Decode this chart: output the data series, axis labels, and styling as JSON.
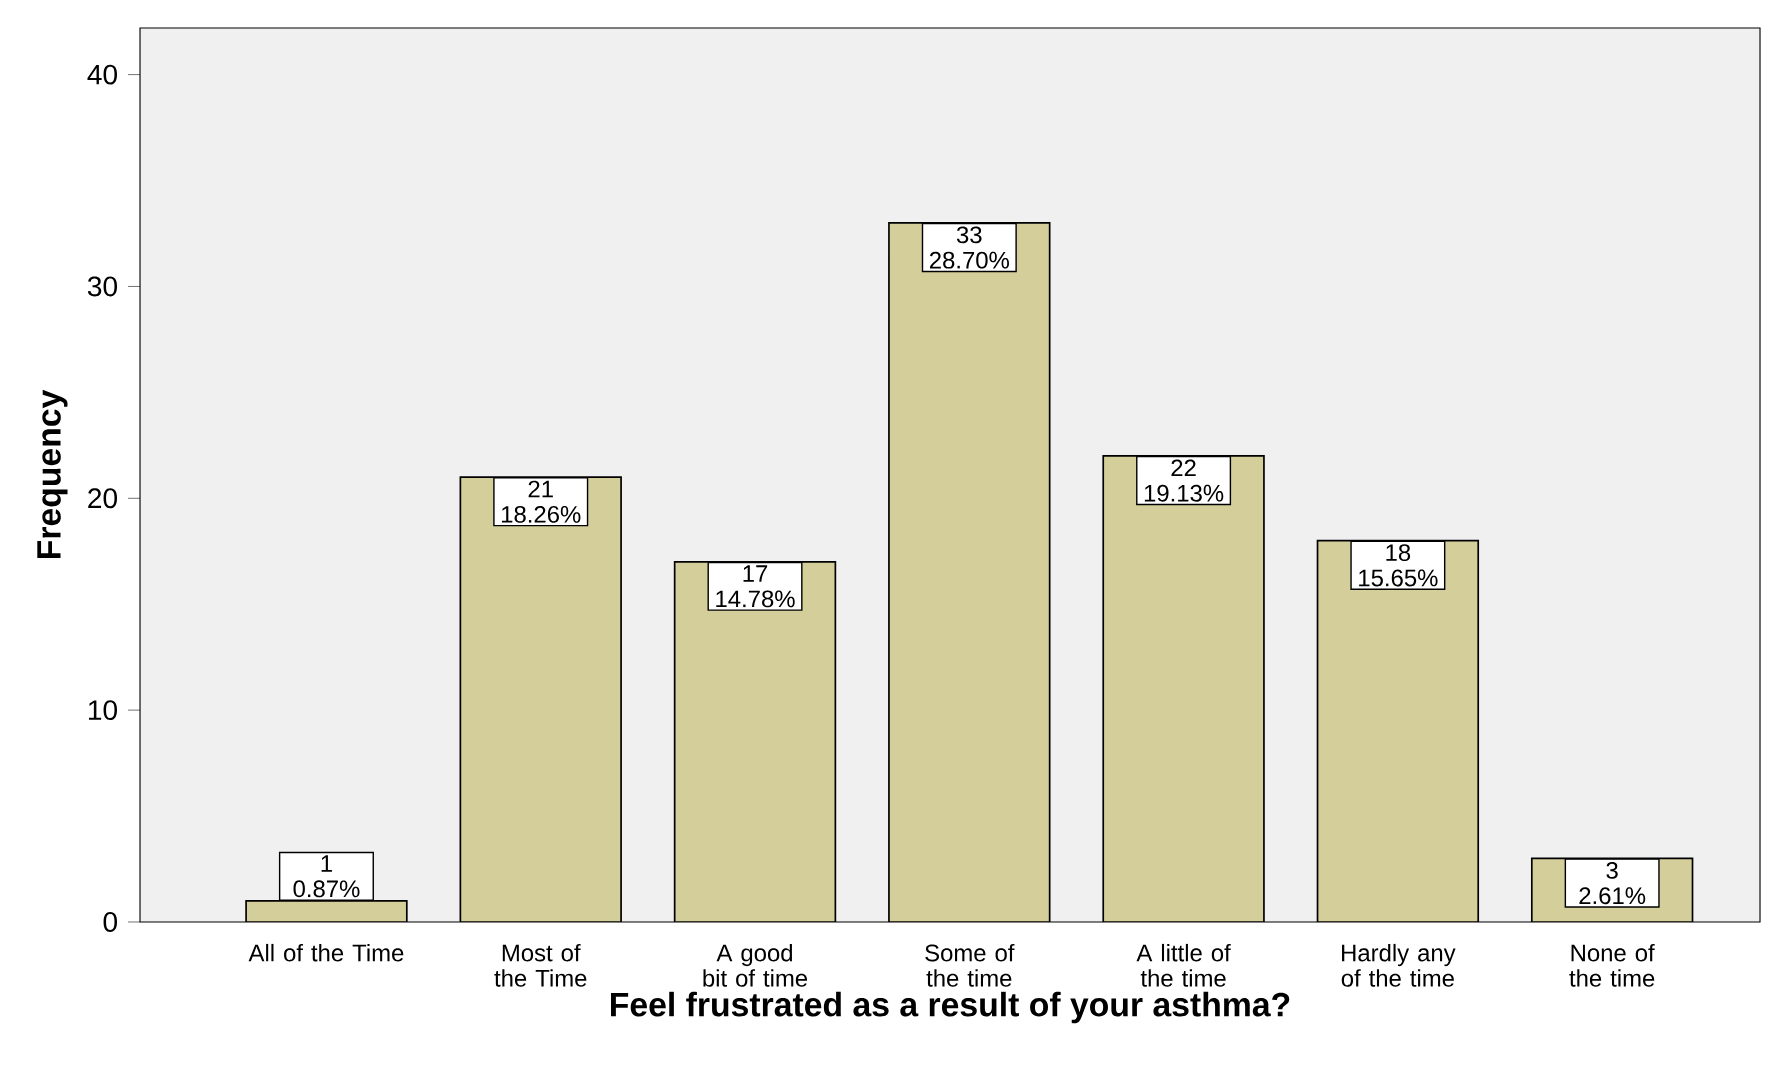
{
  "chart_data": {
    "type": "bar",
    "xlabel": "Feel frustrated as a result of your asthma?",
    "ylabel": "Frequency",
    "categories": [
      "All of the Time",
      "Most of the Time",
      "A good bit of time",
      "Some of the time",
      "A little of the time",
      "Hardly any of the time",
      "None of the time"
    ],
    "values": [
      1,
      21,
      17,
      33,
      22,
      18,
      3
    ],
    "value_labels": [
      "1 0.87%",
      "21 18.26%",
      "17 14.78%",
      "33 28.70%",
      "22 19.13%",
      "18 15.65%",
      "3 2.61%"
    ],
    "color": "#d3ce9a",
    "ylim": [
      0,
      42.2
    ],
    "yticks": [
      0,
      10,
      20,
      30,
      40
    ],
    "grid": false
  }
}
